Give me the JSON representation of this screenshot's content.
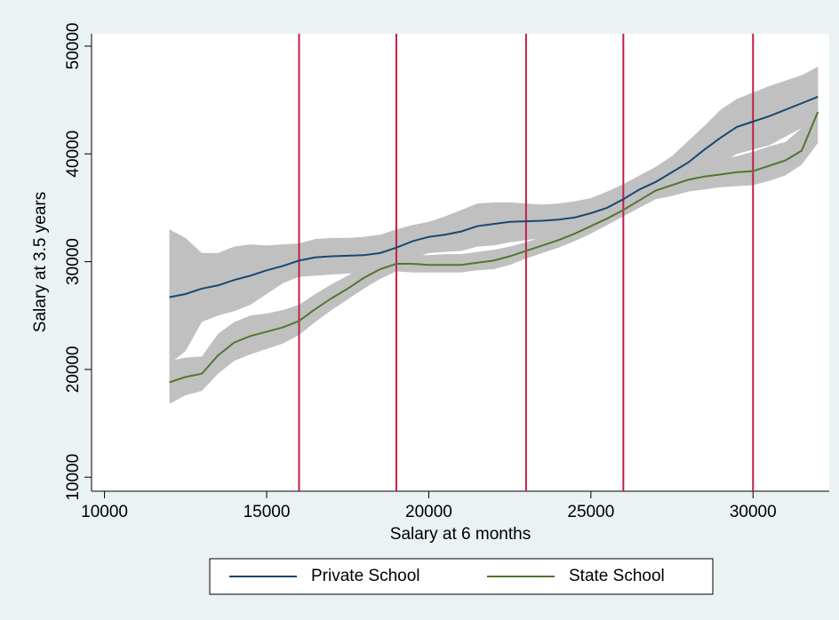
{
  "chart_data": {
    "type": "line",
    "xlabel": "Salary at 6 months",
    "ylabel": "Salary at 3.5 years",
    "x": [
      12000,
      12500,
      13000,
      13500,
      14000,
      14500,
      15000,
      15500,
      16000,
      16500,
      17000,
      17500,
      18000,
      18500,
      19000,
      19500,
      20000,
      20500,
      21000,
      21500,
      22000,
      22500,
      23000,
      23500,
      24000,
      24500,
      25000,
      25500,
      26000,
      26500,
      27000,
      27500,
      28000,
      28500,
      29000,
      29500,
      30000,
      30500,
      31000,
      31500,
      32000
    ],
    "series": [
      {
        "name": "Private School",
        "color": "#1a476f",
        "values": [
          26700,
          27000,
          27500,
          27800,
          28300,
          28700,
          29200,
          29600,
          30100,
          30400,
          30500,
          30550,
          30600,
          30800,
          31300,
          31900,
          32300,
          32500,
          32800,
          33300,
          33500,
          33700,
          33750,
          33800,
          33900,
          34100,
          34500,
          35000,
          35800,
          36700,
          37400,
          38300,
          39200,
          40400,
          41500,
          42500,
          43000,
          43500,
          44100,
          44700,
          45300
        ],
        "upper": [
          33000,
          32200,
          30800,
          30800,
          31400,
          31600,
          31500,
          31600,
          31700,
          32100,
          32200,
          32200,
          32300,
          32500,
          33000,
          33400,
          33700,
          34200,
          34800,
          35400,
          35500,
          35500,
          35400,
          35300,
          35400,
          35600,
          35900,
          36500,
          37200,
          38000,
          38800,
          39800,
          41200,
          42600,
          44100,
          45100,
          45700,
          46300,
          46800,
          47300,
          48100
        ],
        "lower": [
          20500,
          21700,
          24400,
          25000,
          25400,
          26000,
          27000,
          28000,
          28600,
          28700,
          28800,
          28900,
          28900,
          29100,
          29600,
          30300,
          30800,
          30900,
          31000,
          31400,
          31500,
          31800,
          32000,
          32200,
          32400,
          32700,
          33100,
          33600,
          34500,
          35400,
          36100,
          36900,
          37300,
          38200,
          39100,
          40000,
          40400,
          40800,
          41600,
          42400,
          42800
        ]
      },
      {
        "name": "State School",
        "color": "#55752f",
        "values": [
          18800,
          19300,
          19600,
          21300,
          22500,
          23100,
          23500,
          23900,
          24500,
          25600,
          26600,
          27500,
          28500,
          29300,
          29800,
          29800,
          29700,
          29700,
          29700,
          29900,
          30100,
          30500,
          31000,
          31500,
          32000,
          32600,
          33300,
          34000,
          34800,
          35700,
          36600,
          37100,
          37600,
          37900,
          38100,
          38300,
          38400,
          38900,
          39400,
          40300,
          43900
        ],
        "upper": [
          20800,
          21100,
          21200,
          23300,
          24400,
          25000,
          25200,
          25500,
          26000,
          27000,
          27900,
          28700,
          29600,
          30300,
          30600,
          30600,
          30600,
          30700,
          30700,
          30900,
          31100,
          31400,
          31800,
          32300,
          32800,
          33300,
          34000,
          34700,
          35400,
          36400,
          37300,
          38000,
          38600,
          39000,
          39400,
          39800,
          40200,
          40700,
          41100,
          42400,
          48000
        ],
        "lower": [
          16800,
          17600,
          18000,
          19600,
          20800,
          21400,
          21900,
          22400,
          23200,
          24400,
          25500,
          26500,
          27500,
          28400,
          29100,
          29000,
          29000,
          29000,
          29000,
          29200,
          29300,
          29700,
          30300,
          30800,
          31300,
          31900,
          32600,
          33400,
          34200,
          35000,
          35800,
          36100,
          36500,
          36700,
          36900,
          37000,
          37100,
          37500,
          38000,
          39000,
          41000
        ]
      }
    ],
    "band_color": "#c0c0c0",
    "vlines": [
      16000,
      19000,
      23000,
      26000,
      30000
    ],
    "vline_color": "#c01f45",
    "xlim": [
      9600,
      32350
    ],
    "xticks": [
      10000,
      15000,
      20000,
      25000,
      30000
    ],
    "ylim": [
      8700,
      51150
    ],
    "yticks": [
      10000,
      20000,
      30000,
      40000,
      50000
    ],
    "legend": "bottom"
  }
}
